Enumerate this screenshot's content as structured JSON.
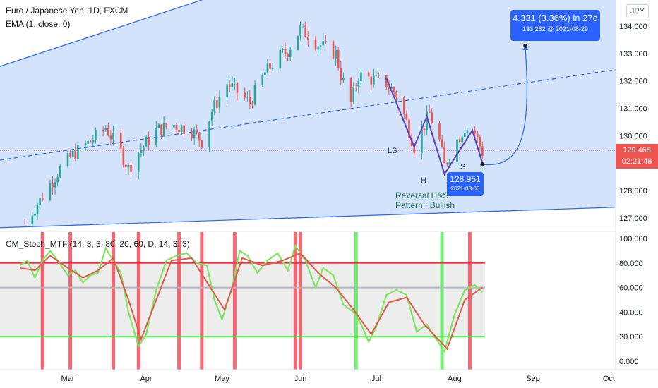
{
  "legend": {
    "symbol": "Euro / Japanese Yen, 1D, FXCM",
    "ema": "EMA (1, close, 0)",
    "stoch": "CM_Stoch_MTF (14, 3, 3, 80, 20, 60, D, 14, 3, 3)"
  },
  "currency": "JPY",
  "last_price": {
    "price": "129.468",
    "countdown": "02:21:48"
  },
  "target": {
    "change": "4.331 (3.36%) in 27d",
    "detail": "133.282 @ 2021-08-29"
  },
  "low_point": {
    "price": "128.951",
    "date": "2021-08-03"
  },
  "pattern": {
    "line1": "Reversal H&S",
    "line2": "Pattern : Bullish"
  },
  "hs_points": {
    "left_shoulder": "LS",
    "head": "H",
    "right_shoulder": "S"
  },
  "colors": {
    "up": "#26a69a",
    "down": "#ef5350",
    "channel": "#2962ff",
    "channel_fill": "#cfe0fc",
    "stoch_k": "#7fe55f",
    "stoch_d": "#e35a4a",
    "ob_line": "#f23645",
    "os_line": "#45e845",
    "mid_line": "#b2b5be"
  },
  "chart_data": [
    {
      "type": "candlestick",
      "title": "Euro / Japanese Yen, 1D, FXCM",
      "xlabel": "",
      "ylabel": "",
      "x_ticks": [
        "Mar",
        "Apr",
        "May",
        "Jun",
        "Jul",
        "Aug",
        "Sep",
        "Oct"
      ],
      "y_ticks": [
        "127.000",
        "128.000",
        "129.000",
        "130.000",
        "131.000",
        "132.000",
        "133.000",
        "134.000"
      ],
      "ylim": [
        126.6,
        134.5
      ],
      "close_path": [
        {
          "date": "2021-02-12",
          "close": 126.8
        },
        {
          "date": "2021-02-19",
          "close": 127.8
        },
        {
          "date": "2021-02-26",
          "close": 128.8
        },
        {
          "date": "2021-03-03",
          "close": 129.3
        },
        {
          "date": "2021-03-10",
          "close": 129.8
        },
        {
          "date": "2021-03-16",
          "close": 130.3
        },
        {
          "date": "2021-03-22",
          "close": 129.4
        },
        {
          "date": "2021-03-25",
          "close": 128.8
        },
        {
          "date": "2021-03-29",
          "close": 129.4
        },
        {
          "date": "2021-04-05",
          "close": 130.2
        },
        {
          "date": "2021-04-12",
          "close": 130.4
        },
        {
          "date": "2021-04-19",
          "close": 130.2
        },
        {
          "date": "2021-04-23",
          "close": 129.8
        },
        {
          "date": "2021-04-27",
          "close": 130.9
        },
        {
          "date": "2021-05-03",
          "close": 131.9
        },
        {
          "date": "2021-05-07",
          "close": 131.6
        },
        {
          "date": "2021-05-12",
          "close": 131.2
        },
        {
          "date": "2021-05-18",
          "close": 132.3
        },
        {
          "date": "2021-05-24",
          "close": 132.9
        },
        {
          "date": "2021-05-27",
          "close": 133.1
        },
        {
          "date": "2021-06-01",
          "close": 133.9
        },
        {
          "date": "2021-06-04",
          "close": 133.7
        },
        {
          "date": "2021-06-07",
          "close": 133.4
        },
        {
          "date": "2021-06-11",
          "close": 133.2
        },
        {
          "date": "2021-06-15",
          "close": 133.0
        },
        {
          "date": "2021-06-17",
          "close": 132.2
        },
        {
          "date": "2021-06-21",
          "close": 131.2
        },
        {
          "date": "2021-06-24",
          "close": 132.2
        },
        {
          "date": "2021-06-28",
          "close": 132.1
        },
        {
          "date": "2021-07-05",
          "close": 131.9
        },
        {
          "date": "2021-07-09",
          "close": 131.5
        },
        {
          "date": "2021-07-13",
          "close": 130.5
        },
        {
          "date": "2021-07-16",
          "close": 129.6
        },
        {
          "date": "2021-07-20",
          "close": 130.4
        },
        {
          "date": "2021-07-22",
          "close": 130.8
        },
        {
          "date": "2021-07-26",
          "close": 129.8
        },
        {
          "date": "2021-07-28",
          "close": 128.9
        },
        {
          "date": "2021-08-01",
          "close": 129.7
        },
        {
          "date": "2021-08-05",
          "close": 130.3
        },
        {
          "date": "2021-08-09",
          "close": 130.1
        },
        {
          "date": "2021-08-12",
          "close": 129.4
        }
      ],
      "annotations": [
        {
          "label": "LS",
          "date": "2021-07-16",
          "price": 129.6
        },
        {
          "label": "H",
          "date": "2021-07-28",
          "price": 128.6
        },
        {
          "label": "S",
          "date": "2021-08-12",
          "price": 129.0
        },
        {
          "label": "target",
          "date": "2021-08-29",
          "price": 133.282
        }
      ]
    },
    {
      "type": "line",
      "title": "CM_Stoch_MTF (14, 3, 3, 80, 20, 60, D, 14, 3, 3)",
      "y_ticks": [
        "0.000",
        "20.000",
        "40.000",
        "60.000",
        "80.000",
        "100.000"
      ],
      "ylim": [
        -3,
        100
      ],
      "reference_lines": [
        80,
        60,
        20
      ],
      "k_series": [
        {
          "date": "2021-02-10",
          "value": 78
        },
        {
          "date": "2021-02-13",
          "value": 82
        },
        {
          "date": "2021-02-16",
          "value": 68
        },
        {
          "date": "2021-02-19",
          "value": 82
        },
        {
          "date": "2021-02-22",
          "value": 90
        },
        {
          "date": "2021-02-25",
          "value": 82
        },
        {
          "date": "2021-03-01",
          "value": 70
        },
        {
          "date": "2021-03-04",
          "value": 74
        },
        {
          "date": "2021-03-07",
          "value": 64
        },
        {
          "date": "2021-03-10",
          "value": 70
        },
        {
          "date": "2021-03-13",
          "value": 72
        },
        {
          "date": "2021-03-16",
          "value": 92
        },
        {
          "date": "2021-03-19",
          "value": 82
        },
        {
          "date": "2021-03-22",
          "value": 72
        },
        {
          "date": "2021-03-25",
          "value": 40
        },
        {
          "date": "2021-03-29",
          "value": 12
        },
        {
          "date": "2021-04-01",
          "value": 22
        },
        {
          "date": "2021-04-05",
          "value": 58
        },
        {
          "date": "2021-04-09",
          "value": 82
        },
        {
          "date": "2021-04-13",
          "value": 86
        },
        {
          "date": "2021-04-17",
          "value": 88
        },
        {
          "date": "2021-04-21",
          "value": 80
        },
        {
          "date": "2021-04-25",
          "value": 78
        },
        {
          "date": "2021-04-28",
          "value": 50
        },
        {
          "date": "2021-05-01",
          "value": 34
        },
        {
          "date": "2021-05-05",
          "value": 60
        },
        {
          "date": "2021-05-08",
          "value": 90
        },
        {
          "date": "2021-05-11",
          "value": 86
        },
        {
          "date": "2021-05-15",
          "value": 72
        },
        {
          "date": "2021-05-19",
          "value": 82
        },
        {
          "date": "2021-05-23",
          "value": 88
        },
        {
          "date": "2021-05-27",
          "value": 74
        },
        {
          "date": "2021-05-30",
          "value": 94
        },
        {
          "date": "2021-06-03",
          "value": 82
        },
        {
          "date": "2021-06-07",
          "value": 60
        },
        {
          "date": "2021-06-10",
          "value": 76
        },
        {
          "date": "2021-06-14",
          "value": 70
        },
        {
          "date": "2021-06-18",
          "value": 46
        },
        {
          "date": "2021-06-22",
          "value": 40
        },
        {
          "date": "2021-06-25",
          "value": 30
        },
        {
          "date": "2021-06-28",
          "value": 16
        },
        {
          "date": "2021-07-01",
          "value": 28
        },
        {
          "date": "2021-07-05",
          "value": 54
        },
        {
          "date": "2021-07-09",
          "value": 58
        },
        {
          "date": "2021-07-13",
          "value": 54
        },
        {
          "date": "2021-07-17",
          "value": 24
        },
        {
          "date": "2021-07-21",
          "value": 30
        },
        {
          "date": "2021-07-24",
          "value": 20
        },
        {
          "date": "2021-07-28",
          "value": 8
        },
        {
          "date": "2021-08-01",
          "value": 38
        },
        {
          "date": "2021-08-05",
          "value": 58
        },
        {
          "date": "2021-08-09",
          "value": 62
        },
        {
          "date": "2021-08-12",
          "value": 56
        }
      ],
      "d_series": [
        {
          "date": "2021-02-10",
          "value": 76
        },
        {
          "date": "2021-02-16",
          "value": 74
        },
        {
          "date": "2021-02-22",
          "value": 86
        },
        {
          "date": "2021-03-01",
          "value": 76
        },
        {
          "date": "2021-03-07",
          "value": 68
        },
        {
          "date": "2021-03-13",
          "value": 74
        },
        {
          "date": "2021-03-19",
          "value": 84
        },
        {
          "date": "2021-03-25",
          "value": 50
        },
        {
          "date": "2021-03-30",
          "value": 18
        },
        {
          "date": "2021-04-05",
          "value": 50
        },
        {
          "date": "2021-04-11",
          "value": 82
        },
        {
          "date": "2021-04-19",
          "value": 84
        },
        {
          "date": "2021-04-27",
          "value": 58
        },
        {
          "date": "2021-05-02",
          "value": 42
        },
        {
          "date": "2021-05-09",
          "value": 84
        },
        {
          "date": "2021-05-17",
          "value": 78
        },
        {
          "date": "2021-05-25",
          "value": 82
        },
        {
          "date": "2021-06-01",
          "value": 88
        },
        {
          "date": "2021-06-08",
          "value": 72
        },
        {
          "date": "2021-06-15",
          "value": 60
        },
        {
          "date": "2021-06-22",
          "value": 42
        },
        {
          "date": "2021-06-29",
          "value": 22
        },
        {
          "date": "2021-07-06",
          "value": 48
        },
        {
          "date": "2021-07-13",
          "value": 52
        },
        {
          "date": "2021-07-20",
          "value": 30
        },
        {
          "date": "2021-07-29",
          "value": 10
        },
        {
          "date": "2021-08-05",
          "value": 50
        },
        {
          "date": "2021-08-12",
          "value": 60
        }
      ],
      "green_signals": [
        "2021-06-23",
        "2021-07-27"
      ],
      "red_signals": [
        "2021-02-19",
        "2021-03-02",
        "2021-03-19",
        "2021-03-29",
        "2021-04-14",
        "2021-04-23",
        "2021-05-06",
        "2021-05-30",
        "2021-06-01",
        "2021-08-07"
      ]
    }
  ]
}
